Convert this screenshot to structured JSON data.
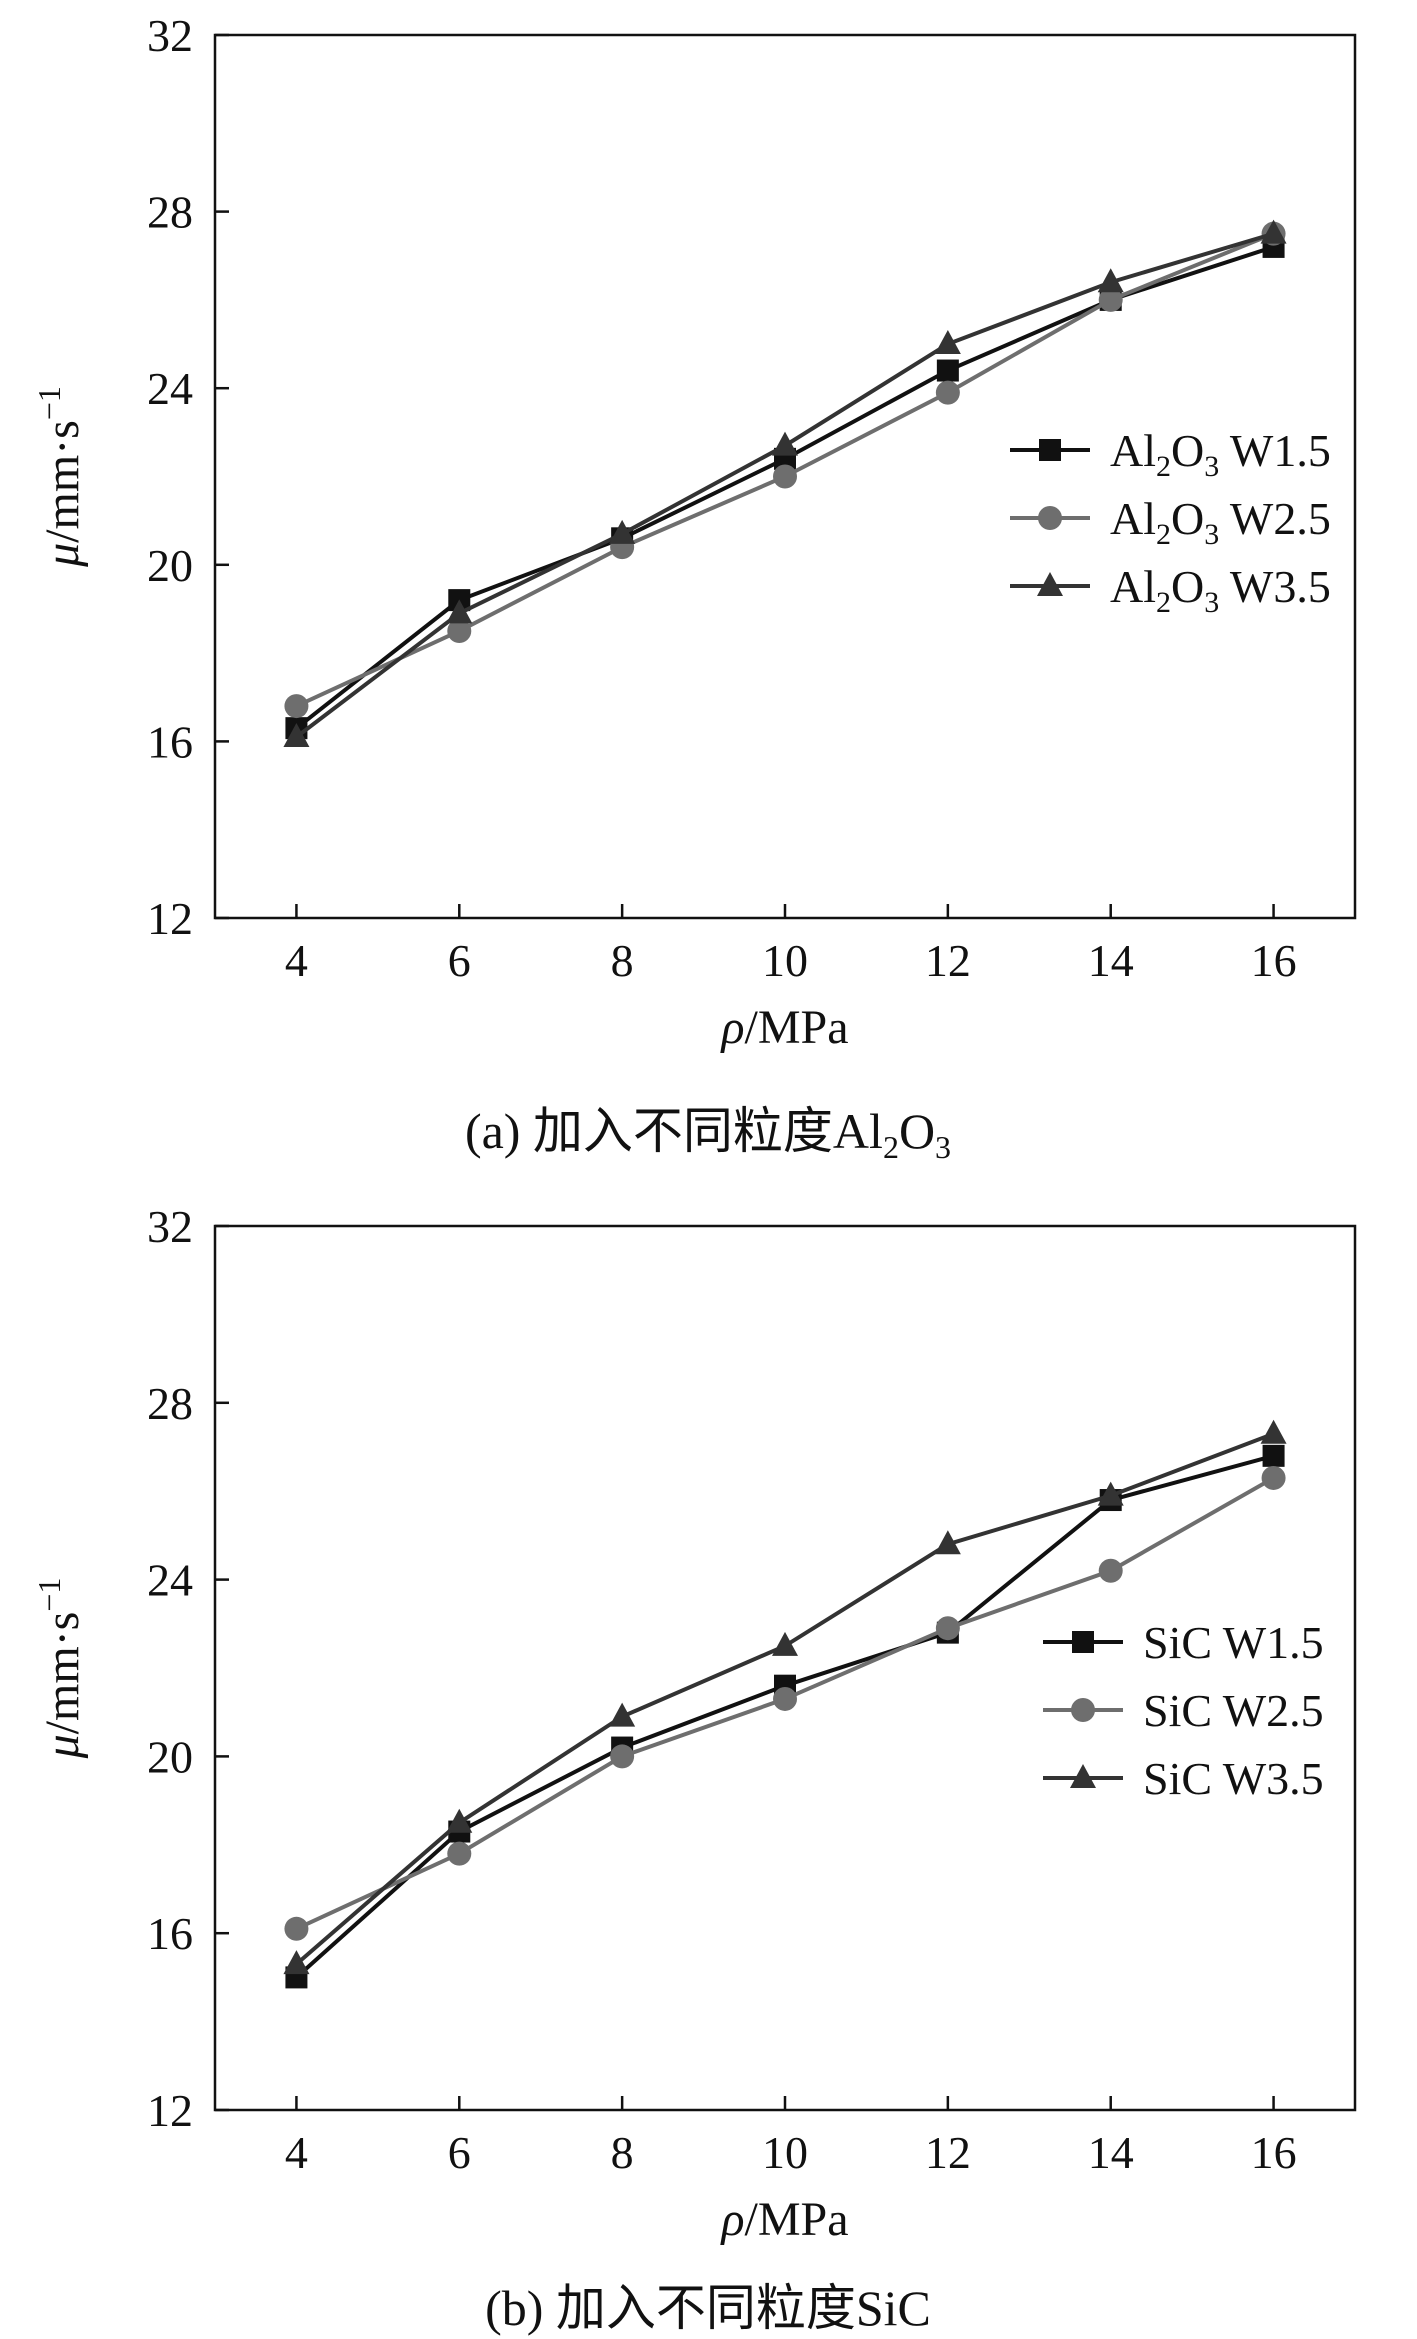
{
  "chart_data": [
    {
      "type": "line",
      "id": "a",
      "caption": "(a) 加入不同粒度Al",
      "caption_sub": "2",
      "caption_tail": "O",
      "caption_sub2": "3",
      "xlabel_sym": "ρ",
      "xlabel_rest": "/MPa",
      "ylabel_sym": "μ",
      "ylabel_rest": "/mm·s",
      "ylabel_sup": "−1",
      "xlim": [
        3,
        17
      ],
      "ylim": [
        12,
        32
      ],
      "x": [
        4,
        6,
        8,
        10,
        12,
        14,
        16
      ],
      "xticks": [
        "4",
        "6",
        "8",
        "10",
        "12",
        "14",
        "16"
      ],
      "yticks": [
        "12",
        "16",
        "20",
        "24",
        "28",
        "32"
      ],
      "legend_position": "right",
      "series": [
        {
          "name": "Al2O3 W1.5",
          "legend_a": "Al",
          "legend_sub1": "2",
          "legend_b": "O",
          "legend_sub2": "3",
          "legend_c": " W1.5",
          "marker": "square",
          "color": "#111111",
          "values": [
            16.3,
            19.2,
            20.6,
            22.4,
            24.4,
            26.0,
            27.2
          ]
        },
        {
          "name": "Al2O3 W2.5",
          "legend_a": "Al",
          "legend_sub1": "2",
          "legend_b": "O",
          "legend_sub2": "3",
          "legend_c": " W2.5",
          "marker": "circle",
          "color": "#6e6e6e",
          "values": [
            16.8,
            18.5,
            20.4,
            22.0,
            23.9,
            26.0,
            27.5
          ]
        },
        {
          "name": "Al2O3 W3.5",
          "legend_a": "Al",
          "legend_sub1": "2",
          "legend_b": "O",
          "legend_sub2": "3",
          "legend_c": " W3.5",
          "marker": "triangle",
          "color": "#333333",
          "values": [
            16.1,
            18.9,
            20.7,
            22.7,
            25.0,
            26.4,
            27.5
          ]
        }
      ]
    },
    {
      "type": "line",
      "id": "b",
      "caption": "(b) 加入不同粒度SiC",
      "xlabel_sym": "ρ",
      "xlabel_rest": "/MPa",
      "ylabel_sym": "μ",
      "ylabel_rest": "/mm·s",
      "ylabel_sup": "−1",
      "xlim": [
        3,
        17
      ],
      "ylim": [
        12,
        32
      ],
      "x": [
        4,
        6,
        8,
        10,
        12,
        14,
        16
      ],
      "xticks": [
        "4",
        "6",
        "8",
        "10",
        "12",
        "14",
        "16"
      ],
      "yticks": [
        "12",
        "16",
        "20",
        "24",
        "28",
        "32"
      ],
      "legend_position": "right",
      "series": [
        {
          "name": "SiC W1.5",
          "legend_c": "SiC W1.5",
          "marker": "square",
          "color": "#111111",
          "values": [
            15.0,
            18.3,
            20.2,
            21.6,
            22.8,
            25.8,
            26.8
          ]
        },
        {
          "name": "SiC W2.5",
          "legend_c": "SiC W2.5",
          "marker": "circle",
          "color": "#6e6e6e",
          "values": [
            16.1,
            17.8,
            20.0,
            21.3,
            22.9,
            24.2,
            26.3
          ]
        },
        {
          "name": "SiC W3.5",
          "legend_c": "SiC W3.5",
          "marker": "triangle",
          "color": "#333333",
          "values": [
            15.3,
            18.5,
            20.9,
            22.5,
            24.8,
            25.9,
            27.3
          ]
        }
      ]
    }
  ]
}
